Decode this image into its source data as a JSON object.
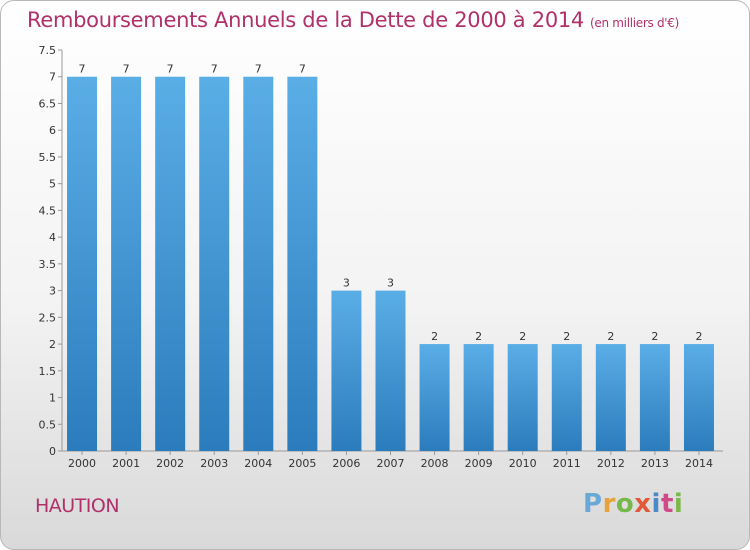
{
  "title": "Remboursements Annuels de la Dette de 2000 à 2014",
  "unit_label": "(en milliers d'€)",
  "city": "HAUTION",
  "logo": {
    "text": "Proxiti",
    "colors": [
      "#6aa8d8",
      "#e8a23a",
      "#77b84a",
      "#e05a3a",
      "#4a8ac8",
      "#d04a8a",
      "#7ab84a"
    ]
  },
  "colors": {
    "bar": "#4d9fdc",
    "bar_dark": "#2e7fbe",
    "title": "#b0306a"
  },
  "chart_data": {
    "type": "bar",
    "categories": [
      "2000",
      "2001",
      "2002",
      "2003",
      "2004",
      "2005",
      "2006",
      "2007",
      "2008",
      "2009",
      "2010",
      "2011",
      "2012",
      "2013",
      "2014"
    ],
    "values": [
      7,
      7,
      7,
      7,
      7,
      7,
      3,
      3,
      2,
      2,
      2,
      2,
      2,
      2,
      2
    ],
    "ylim": [
      0,
      7.5
    ],
    "yticks": [
      "0",
      "0.5",
      "1",
      "1.5",
      "2",
      "2.5",
      "3",
      "3.5",
      "4",
      "4.5",
      "5",
      "5.5",
      "6",
      "6.5",
      "7",
      "7.5"
    ],
    "grid": false
  }
}
